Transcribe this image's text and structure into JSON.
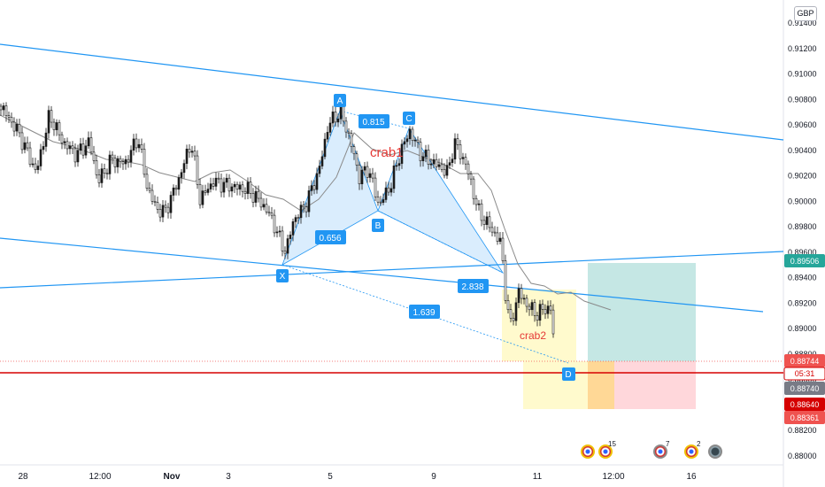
{
  "currency": "GBP",
  "price_axis": {
    "ticks": [
      "0.91400",
      "0.91200",
      "0.91000",
      "0.90800",
      "0.90600",
      "0.90400",
      "0.90200",
      "0.90000",
      "0.89800",
      "0.89600",
      "0.89400",
      "0.89200",
      "0.89000",
      "0.88800",
      "0.88600",
      "0.88400",
      "0.88200",
      "0.88000"
    ],
    "tick_values": [
      0.914,
      0.912,
      0.91,
      0.908,
      0.906,
      0.904,
      0.902,
      0.9,
      0.898,
      0.896,
      0.894,
      0.892,
      0.89,
      0.888,
      0.886,
      0.884,
      0.882,
      0.88
    ]
  },
  "time_axis": {
    "labels": [
      "28",
      "12:00",
      "Nov",
      "3",
      "5",
      "9",
      "11",
      "12:00",
      "16"
    ]
  },
  "price_tags": {
    "upper_line": "0.89506",
    "target_high": "0.88744",
    "countdown": "05:31",
    "current": "0.88740",
    "stop_level": "0.88640",
    "lower_level": "0.88361"
  },
  "pattern_points": {
    "x": "X",
    "a": "A",
    "b": "B",
    "c": "C",
    "d": "D"
  },
  "pattern_values": {
    "xa_b": "0.656",
    "ab_c": "0.815",
    "bc_d": "2.838",
    "xa_d": "1.639"
  },
  "pattern_names": {
    "first": "crab1",
    "second": "crab2"
  },
  "events": [
    {
      "icon": "uk-flag-event-icon",
      "badge": ""
    },
    {
      "icon": "uk-flag-event-icon",
      "badge": "15"
    },
    {
      "icon": "earnings-event-icon",
      "badge": "7"
    },
    {
      "icon": "uk-flag-event-icon",
      "badge": "2"
    },
    {
      "icon": "dividend-event-icon",
      "badge": ""
    }
  ],
  "colors": {
    "up": "#26a69a",
    "down": "#ef5350",
    "candle": "#1a1a1a",
    "trend_line": "#2196f3",
    "current_line": "#d50000",
    "pattern_fill": "#bbdefb",
    "tag_blue": "#2196f3",
    "target_green": "#26a69a",
    "stop_red": "#ef5350",
    "gray_tag": "#787b86",
    "teal_zone": "#b2dfdb",
    "red_zone": "#ffcdd2",
    "yellow_zone": "#fff9c4",
    "orange_zone": "#ffe0b2"
  }
}
